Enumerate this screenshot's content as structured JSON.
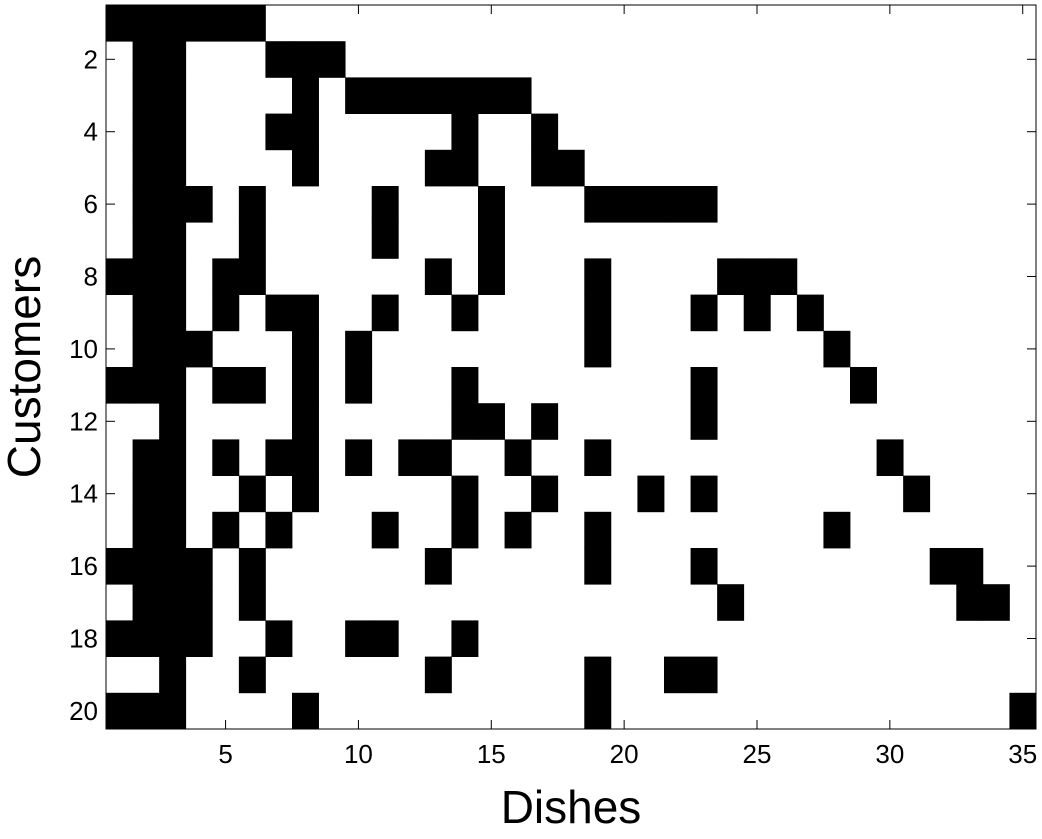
{
  "chart_data": {
    "type": "heatmap",
    "title": "",
    "xlabel": "Dishes",
    "ylabel": "Customers",
    "xlim": [
      0.5,
      35.5
    ],
    "ylim": [
      0.5,
      20.5
    ],
    "y_reversed": true,
    "xticks": [
      5,
      10,
      15,
      20,
      25,
      30,
      35
    ],
    "yticks": [
      2,
      4,
      6,
      8,
      10,
      12,
      14,
      16,
      18,
      20
    ],
    "colors": {
      "on": "#000000",
      "off": "#ffffff"
    },
    "grid": false,
    "matrix": [
      [
        1,
        1,
        1,
        1,
        1,
        1,
        0,
        0,
        0,
        0,
        0,
        0,
        0,
        0,
        0,
        0,
        0,
        0,
        0,
        0,
        0,
        0,
        0,
        0,
        0,
        0,
        0,
        0,
        0,
        0,
        0,
        0,
        0,
        0,
        0
      ],
      [
        0,
        1,
        1,
        0,
        0,
        0,
        1,
        1,
        1,
        0,
        0,
        0,
        0,
        0,
        0,
        0,
        0,
        0,
        0,
        0,
        0,
        0,
        0,
        0,
        0,
        0,
        0,
        0,
        0,
        0,
        0,
        0,
        0,
        0,
        0
      ],
      [
        0,
        1,
        1,
        0,
        0,
        0,
        0,
        1,
        0,
        1,
        1,
        1,
        1,
        1,
        1,
        1,
        0,
        0,
        0,
        0,
        0,
        0,
        0,
        0,
        0,
        0,
        0,
        0,
        0,
        0,
        0,
        0,
        0,
        0,
        0
      ],
      [
        0,
        1,
        1,
        0,
        0,
        0,
        1,
        1,
        0,
        0,
        0,
        0,
        0,
        1,
        0,
        0,
        1,
        0,
        0,
        0,
        0,
        0,
        0,
        0,
        0,
        0,
        0,
        0,
        0,
        0,
        0,
        0,
        0,
        0,
        0
      ],
      [
        0,
        1,
        1,
        0,
        0,
        0,
        0,
        1,
        0,
        0,
        0,
        0,
        1,
        1,
        0,
        0,
        1,
        1,
        0,
        0,
        0,
        0,
        0,
        0,
        0,
        0,
        0,
        0,
        0,
        0,
        0,
        0,
        0,
        0,
        0
      ],
      [
        0,
        1,
        1,
        1,
        0,
        1,
        0,
        0,
        0,
        0,
        1,
        0,
        0,
        0,
        1,
        0,
        0,
        0,
        1,
        1,
        1,
        1,
        1,
        0,
        0,
        0,
        0,
        0,
        0,
        0,
        0,
        0,
        0,
        0,
        0
      ],
      [
        0,
        1,
        1,
        0,
        0,
        1,
        0,
        0,
        0,
        0,
        1,
        0,
        0,
        0,
        1,
        0,
        0,
        0,
        0,
        0,
        0,
        0,
        0,
        0,
        0,
        0,
        0,
        0,
        0,
        0,
        0,
        0,
        0,
        0,
        0
      ],
      [
        1,
        1,
        1,
        0,
        1,
        1,
        0,
        0,
        0,
        0,
        0,
        0,
        1,
        0,
        1,
        0,
        0,
        0,
        1,
        0,
        0,
        0,
        0,
        1,
        1,
        1,
        0,
        0,
        0,
        0,
        0,
        0,
        0,
        0,
        0
      ],
      [
        0,
        1,
        1,
        0,
        1,
        0,
        1,
        1,
        0,
        0,
        1,
        0,
        0,
        1,
        0,
        0,
        0,
        0,
        1,
        0,
        0,
        0,
        1,
        0,
        1,
        0,
        1,
        0,
        0,
        0,
        0,
        0,
        0,
        0,
        0
      ],
      [
        0,
        1,
        1,
        1,
        0,
        0,
        0,
        1,
        0,
        1,
        0,
        0,
        0,
        0,
        0,
        0,
        0,
        0,
        1,
        0,
        0,
        0,
        0,
        0,
        0,
        0,
        0,
        1,
        0,
        0,
        0,
        0,
        0,
        0,
        0
      ],
      [
        1,
        1,
        1,
        0,
        1,
        1,
        0,
        1,
        0,
        1,
        0,
        0,
        0,
        1,
        0,
        0,
        0,
        0,
        0,
        0,
        0,
        0,
        1,
        0,
        0,
        0,
        0,
        0,
        1,
        0,
        0,
        0,
        0,
        0,
        0
      ],
      [
        0,
        0,
        1,
        0,
        0,
        0,
        0,
        1,
        0,
        0,
        0,
        0,
        0,
        1,
        1,
        0,
        1,
        0,
        0,
        0,
        0,
        0,
        1,
        0,
        0,
        0,
        0,
        0,
        0,
        0,
        0,
        0,
        0,
        0,
        0
      ],
      [
        0,
        1,
        1,
        0,
        1,
        0,
        1,
        1,
        0,
        1,
        0,
        1,
        1,
        0,
        0,
        1,
        0,
        0,
        1,
        0,
        0,
        0,
        0,
        0,
        0,
        0,
        0,
        0,
        0,
        1,
        0,
        0,
        0,
        0,
        0
      ],
      [
        0,
        1,
        1,
        0,
        0,
        1,
        0,
        1,
        0,
        0,
        0,
        0,
        0,
        1,
        0,
        0,
        1,
        0,
        0,
        0,
        1,
        0,
        1,
        0,
        0,
        0,
        0,
        0,
        0,
        0,
        1,
        0,
        0,
        0,
        0
      ],
      [
        0,
        1,
        1,
        0,
        1,
        0,
        1,
        0,
        0,
        0,
        1,
        0,
        0,
        1,
        0,
        1,
        0,
        0,
        1,
        0,
        0,
        0,
        0,
        0,
        0,
        0,
        0,
        1,
        0,
        0,
        0,
        0,
        0,
        0,
        0
      ],
      [
        1,
        1,
        1,
        1,
        0,
        1,
        0,
        0,
        0,
        0,
        0,
        0,
        1,
        0,
        0,
        0,
        0,
        0,
        1,
        0,
        0,
        0,
        1,
        0,
        0,
        0,
        0,
        0,
        0,
        0,
        0,
        1,
        1,
        0,
        0
      ],
      [
        0,
        1,
        1,
        1,
        0,
        1,
        0,
        0,
        0,
        0,
        0,
        0,
        0,
        0,
        0,
        0,
        0,
        0,
        0,
        0,
        0,
        0,
        0,
        1,
        0,
        0,
        0,
        0,
        0,
        0,
        0,
        0,
        1,
        1,
        0
      ],
      [
        1,
        1,
        1,
        1,
        0,
        0,
        1,
        0,
        0,
        1,
        1,
        0,
        0,
        1,
        0,
        0,
        0,
        0,
        0,
        0,
        0,
        0,
        0,
        0,
        0,
        0,
        0,
        0,
        0,
        0,
        0,
        0,
        0,
        0,
        0
      ],
      [
        0,
        0,
        1,
        0,
        0,
        1,
        0,
        0,
        0,
        0,
        0,
        0,
        1,
        0,
        0,
        0,
        0,
        0,
        1,
        0,
        0,
        1,
        1,
        0,
        0,
        0,
        0,
        0,
        0,
        0,
        0,
        0,
        0,
        0,
        0
      ],
      [
        1,
        1,
        1,
        0,
        0,
        0,
        0,
        1,
        0,
        0,
        0,
        0,
        0,
        0,
        0,
        0,
        0,
        0,
        1,
        0,
        0,
        0,
        0,
        0,
        0,
        0,
        0,
        0,
        0,
        0,
        0,
        0,
        0,
        0,
        1
      ]
    ]
  }
}
